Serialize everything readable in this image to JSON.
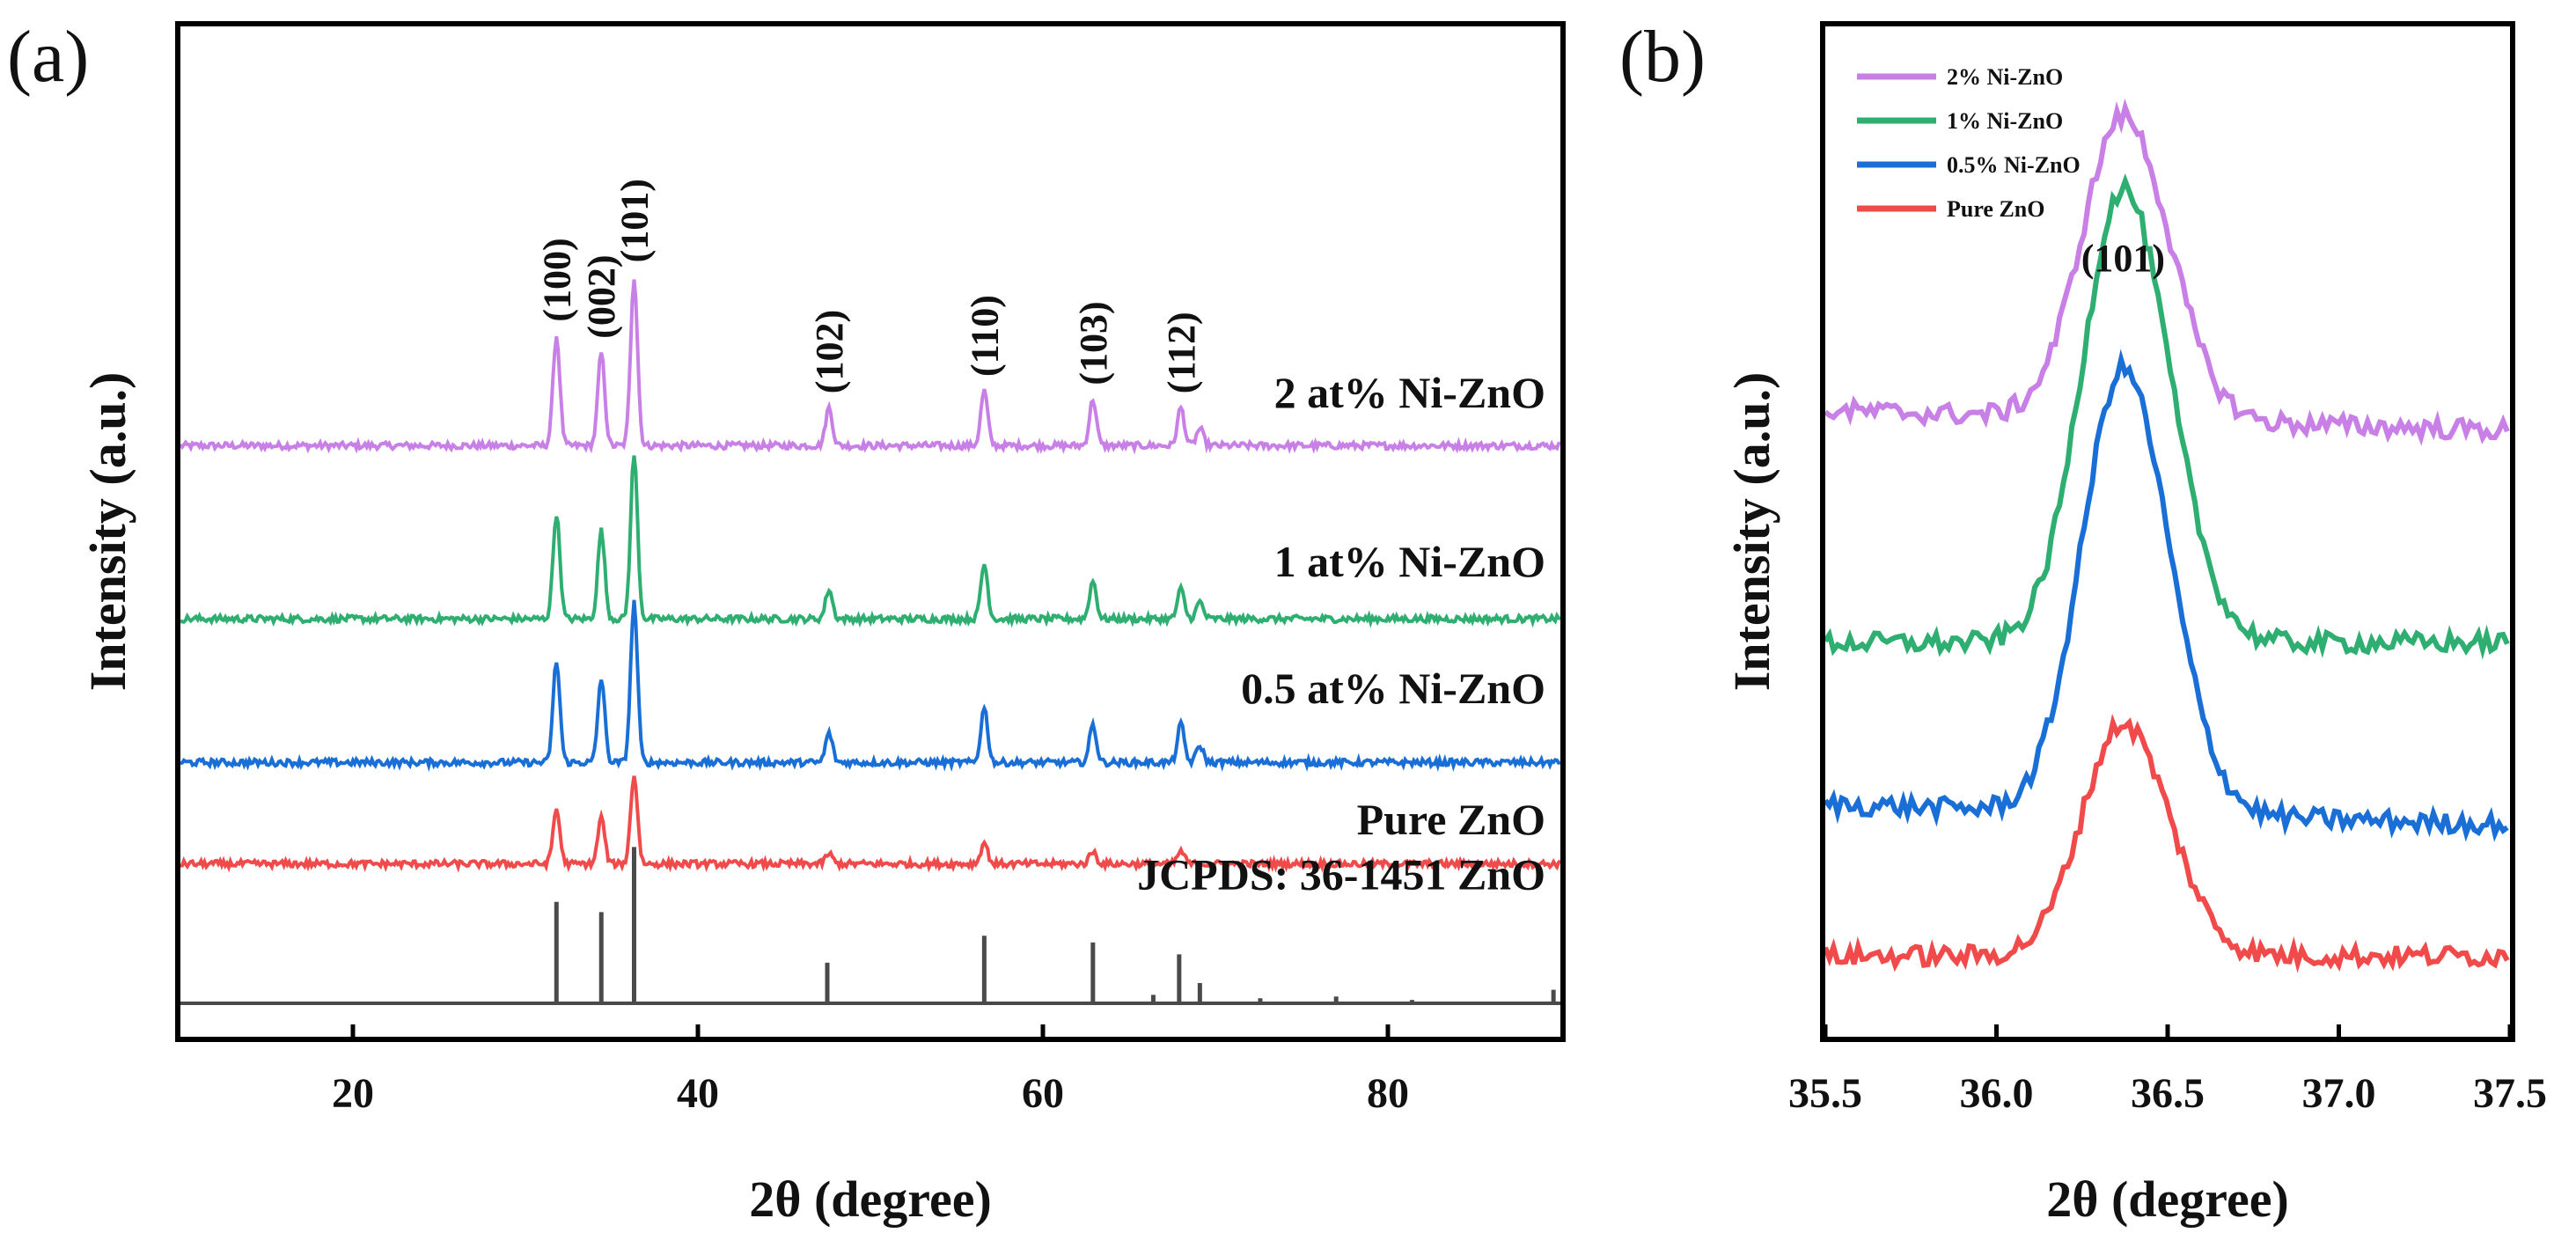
{
  "chart_data": [
    {
      "panel": "(a)",
      "type": "line",
      "xlabel": "2θ (degree)",
      "ylabel": "Intensity (a.u.)",
      "xlim": [
        10,
        90
      ],
      "xticks": [
        20,
        40,
        60,
        80
      ],
      "grid": false,
      "series": [
        {
          "name": "2 at%  Ni-ZnO",
          "color": "#c880e6",
          "baseline": 0.66,
          "peaks": [
            [
              31.8,
              0.13
            ],
            [
              34.4,
              0.11
            ],
            [
              36.3,
              0.2
            ],
            [
              47.6,
              0.045
            ],
            [
              56.6,
              0.065
            ],
            [
              62.9,
              0.055
            ],
            [
              68.0,
              0.045
            ],
            [
              69.1,
              0.02
            ]
          ]
        },
        {
          "name": "1 at%  Ni-ZnO",
          "color": "#2eae70",
          "baseline": 0.455,
          "peaks": [
            [
              31.8,
              0.125
            ],
            [
              34.4,
              0.105
            ],
            [
              36.3,
              0.195
            ],
            [
              47.6,
              0.035
            ],
            [
              56.6,
              0.065
            ],
            [
              62.9,
              0.045
            ],
            [
              68.0,
              0.035
            ],
            [
              69.1,
              0.02
            ]
          ]
        },
        {
          "name": "0.5 at%  Ni-ZnO",
          "color": "#1a6fd6",
          "baseline": 0.285,
          "peaks": [
            [
              31.8,
              0.12
            ],
            [
              34.4,
              0.1
            ],
            [
              36.3,
              0.19
            ],
            [
              47.6,
              0.035
            ],
            [
              56.6,
              0.065
            ],
            [
              62.9,
              0.045
            ],
            [
              68.0,
              0.045
            ],
            [
              69.1,
              0.02
            ]
          ]
        },
        {
          "name": "Pure ZnO",
          "color": "#f04a4a",
          "baseline": 0.165,
          "peaks": [
            [
              31.8,
              0.065
            ],
            [
              34.4,
              0.055
            ],
            [
              36.3,
              0.105
            ],
            [
              47.6,
              0.012
            ],
            [
              56.6,
              0.025
            ],
            [
              62.9,
              0.015
            ],
            [
              68.0,
              0.015
            ]
          ]
        }
      ],
      "reference": {
        "name": "JCPDS: 36-1451 ZnO",
        "color": "#4a4a4a",
        "baseline": 0.0,
        "sticks": [
          [
            31.8,
            0.12
          ],
          [
            34.4,
            0.108
          ],
          [
            36.3,
            0.185
          ],
          [
            47.5,
            0.048
          ],
          [
            56.6,
            0.08
          ],
          [
            62.9,
            0.072
          ],
          [
            66.4,
            0.01
          ],
          [
            67.9,
            0.058
          ],
          [
            69.1,
            0.024
          ],
          [
            72.6,
            0.006
          ],
          [
            77.0,
            0.008
          ],
          [
            81.4,
            0.004
          ],
          [
            89.6,
            0.016
          ]
        ]
      },
      "peak_labels": [
        {
          "text": "(100)",
          "x": 31.8
        },
        {
          "text": "(002)",
          "x": 34.4
        },
        {
          "text": "(101)",
          "x": 36.3
        },
        {
          "text": "(102)",
          "x": 47.6
        },
        {
          "text": "(110)",
          "x": 56.6
        },
        {
          "text": "(103)",
          "x": 62.9
        },
        {
          "text": "(112)",
          "x": 68.0
        }
      ]
    },
    {
      "panel": "(b)",
      "type": "line",
      "xlabel": "2θ (degree)",
      "ylabel": "Intensity (a.u.)",
      "xlim": [
        35.5,
        37.5
      ],
      "xticks": [
        35.5,
        36.0,
        36.5,
        37.0,
        37.5
      ],
      "grid": false,
      "legend_position": "top-left",
      "annotation": "(101)",
      "peak_center": 36.37,
      "series": [
        {
          "name": "2% Ni-ZnO",
          "color": "#c880e6",
          "baseline": 0.62,
          "height": 0.3,
          "tail": 0.02
        },
        {
          "name": "1% Ni-ZnO",
          "color": "#2eae70",
          "baseline": 0.39,
          "height": 0.45,
          "tail": 0.0
        },
        {
          "name": "0.5% Ni-ZnO",
          "color": "#1a6fd6",
          "baseline": 0.23,
          "height": 0.44,
          "tail": 0.02
        },
        {
          "name": "Pure ZnO",
          "color": "#f04a4a",
          "baseline": 0.08,
          "height": 0.23,
          "tail": 0.0
        }
      ]
    }
  ]
}
